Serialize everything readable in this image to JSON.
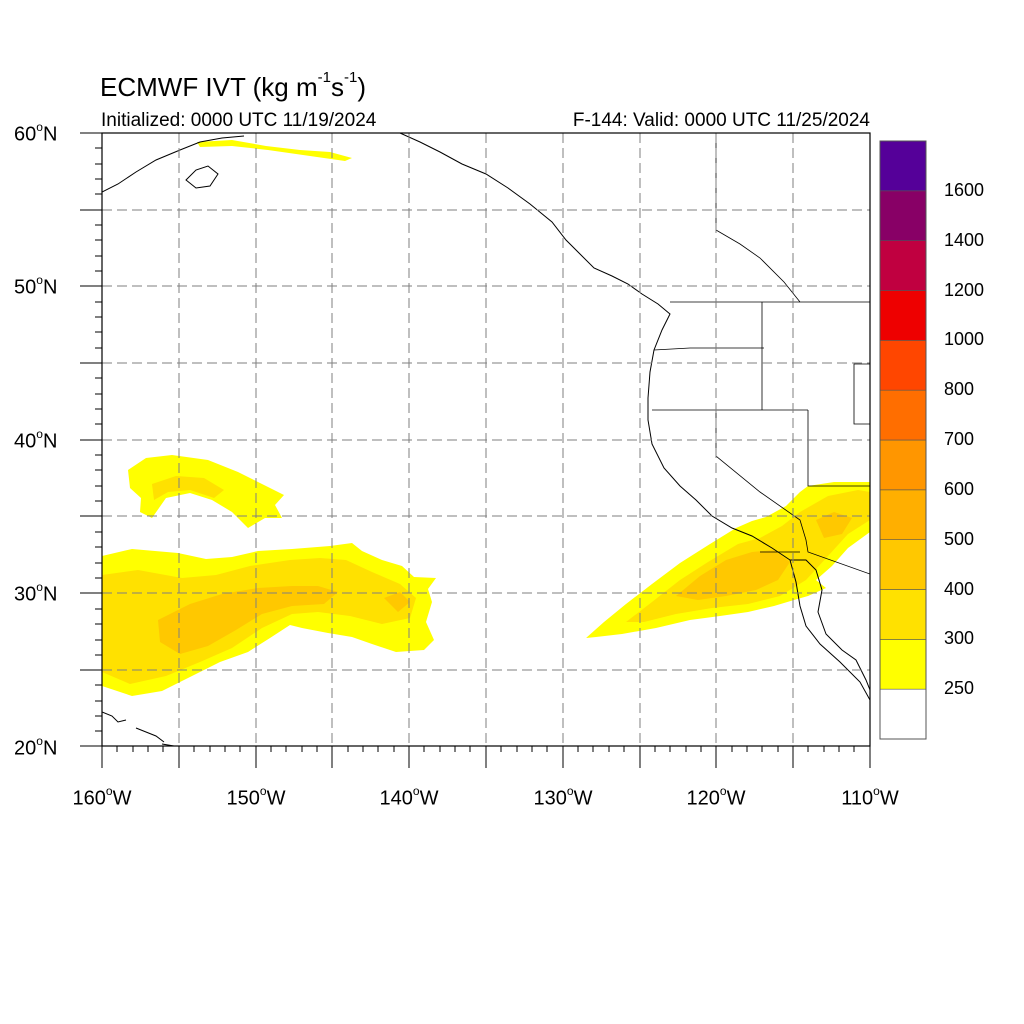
{
  "header": {
    "title_main": "ECMWF IVT (kg m",
    "title_exp1": "-1",
    "title_mid": "s",
    "title_exp2": "-1",
    "title_end": ")",
    "init_text": "Initialized: 0000 UTC 11/19/2024",
    "valid_text": "F-144: Valid: 0000 UTC 11/25/2024"
  },
  "axes": {
    "lat_labels": [
      {
        "deg": "60",
        "hemi": "N"
      },
      {
        "deg": "50",
        "hemi": "N"
      },
      {
        "deg": "40",
        "hemi": "N"
      },
      {
        "deg": "30",
        "hemi": "N"
      },
      {
        "deg": "20",
        "hemi": "N"
      }
    ],
    "lon_labels": [
      {
        "deg": "160",
        "hemi": "W"
      },
      {
        "deg": "150",
        "hemi": "W"
      },
      {
        "deg": "140",
        "hemi": "W"
      },
      {
        "deg": "130",
        "hemi": "W"
      },
      {
        "deg": "120",
        "hemi": "W"
      },
      {
        "deg": "110",
        "hemi": "W"
      }
    ],
    "deg_symbol": "o",
    "lat_range": [
      20,
      60
    ],
    "lon_range": [
      -160,
      -110
    ]
  },
  "colorbar": {
    "levels": [
      "250",
      "300",
      "400",
      "500",
      "600",
      "700",
      "800",
      "1000",
      "1200",
      "1400",
      "1600"
    ],
    "colors": [
      "#ffffff",
      "#ffff00",
      "#ffe100",
      "#ffc800",
      "#ffaf00",
      "#ff9600",
      "#ff6e00",
      "#ff4600",
      "#ee0000",
      "#c00040",
      "#880066",
      "#550099"
    ]
  }
}
